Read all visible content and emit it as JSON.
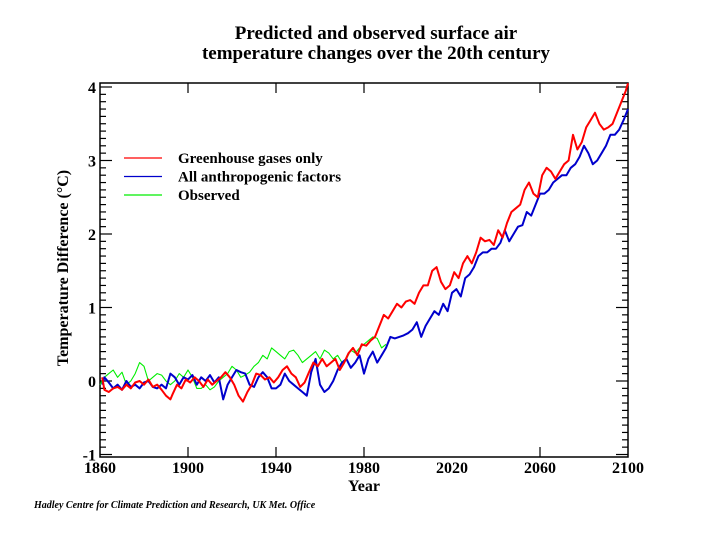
{
  "chart_data": {
    "type": "line",
    "title": "Predicted and observed surface air",
    "subtitle": "temperature changes over the 20th century",
    "xlabel": "Year",
    "ylabel": "Temperature Difference (°C)",
    "xlim": [
      1860,
      2100
    ],
    "ylim": [
      -1,
      4
    ],
    "x_ticks": [
      1860,
      1900,
      1940,
      1980,
      2020,
      2060,
      2100
    ],
    "x_tick_marks": [
      1900,
      1940,
      1980,
      2060
    ],
    "y_ticks": [
      -1,
      0,
      1,
      2,
      3,
      4
    ],
    "y_minor_step": 0.1,
    "grid": false,
    "legend_position": "top-left",
    "series": [
      {
        "name": "Greenhouse gases only",
        "color": "#ff0000",
        "x": [
          1861,
          1862,
          1864,
          1866,
          1868,
          1870,
          1872,
          1874,
          1876,
          1878,
          1880,
          1882,
          1884,
          1886,
          1888,
          1890,
          1892,
          1893,
          1895,
          1897,
          1899,
          1901,
          1903,
          1905,
          1907,
          1909,
          1911,
          1913,
          1915,
          1917,
          1919,
          1921,
          1923,
          1925,
          1927,
          1929,
          1931,
          1933,
          1935,
          1937,
          1939,
          1941,
          1943,
          1945,
          1947,
          1949,
          1951,
          1953,
          1955,
          1957,
          1959,
          1961,
          1963,
          1965,
          1967,
          1969,
          1971,
          1973,
          1975,
          1977,
          1979,
          1981,
          1983,
          1985,
          1987,
          1989,
          1991,
          1993,
          1995,
          1997,
          1999,
          2001,
          2003,
          2005,
          2007,
          2009,
          2011,
          2013,
          2015,
          2017,
          2019,
          2021,
          2023,
          2025,
          2027,
          2029,
          2031,
          2033,
          2035,
          2037,
          2039,
          2041,
          2043,
          2045,
          2047,
          2049,
          2051,
          2053,
          2055,
          2057,
          2059,
          2061,
          2063,
          2065,
          2067,
          2069,
          2071,
          2073,
          2075,
          2077,
          2079,
          2081,
          2083,
          2085,
          2087,
          2089,
          2091,
          2093,
          2095,
          2097,
          2099,
          2100
        ],
        "y": [
          0.05,
          -0.12,
          -0.15,
          -0.1,
          -0.08,
          -0.12,
          -0.05,
          -0.1,
          -0.02,
          0.0,
          -0.05,
          0.02,
          -0.08,
          -0.05,
          -0.12,
          -0.2,
          -0.25,
          -0.18,
          -0.05,
          -0.1,
          0.02,
          -0.02,
          0.05,
          0.0,
          -0.08,
          0.02,
          -0.05,
          0.0,
          0.05,
          0.12,
          0.05,
          -0.05,
          -0.2,
          -0.28,
          -0.15,
          -0.05,
          0.1,
          0.08,
          0.02,
          0.05,
          -0.02,
          0.05,
          0.15,
          0.2,
          0.1,
          0.05,
          -0.08,
          -0.02,
          0.12,
          0.25,
          0.2,
          0.3,
          0.2,
          0.25,
          0.3,
          0.15,
          0.25,
          0.38,
          0.45,
          0.35,
          0.5,
          0.48,
          0.55,
          0.6,
          0.75,
          0.9,
          0.85,
          0.95,
          1.05,
          1.0,
          1.08,
          1.1,
          1.05,
          1.2,
          1.3,
          1.3,
          1.5,
          1.55,
          1.35,
          1.25,
          1.3,
          1.48,
          1.4,
          1.6,
          1.7,
          1.6,
          1.75,
          1.95,
          1.9,
          1.92,
          1.85,
          2.05,
          1.95,
          2.15,
          2.3,
          2.35,
          2.4,
          2.6,
          2.7,
          2.55,
          2.5,
          2.8,
          2.9,
          2.85,
          2.75,
          2.85,
          2.95,
          3.0,
          3.35,
          3.15,
          3.25,
          3.45,
          3.55,
          3.65,
          3.5,
          3.42,
          3.45,
          3.5,
          3.65,
          3.8,
          3.95,
          4.05
        ]
      },
      {
        "name": "All anthropogenic factors",
        "color": "#0000cc",
        "x": [
          1861,
          1862,
          1864,
          1866,
          1868,
          1870,
          1872,
          1874,
          1876,
          1878,
          1880,
          1882,
          1884,
          1886,
          1888,
          1890,
          1892,
          1894,
          1896,
          1898,
          1900,
          1902,
          1904,
          1906,
          1908,
          1910,
          1912,
          1914,
          1916,
          1918,
          1920,
          1922,
          1924,
          1926,
          1928,
          1930,
          1932,
          1934,
          1936,
          1938,
          1940,
          1942,
          1944,
          1946,
          1948,
          1950,
          1952,
          1954,
          1956,
          1958,
          1960,
          1962,
          1964,
          1966,
          1968,
          1970,
          1972,
          1974,
          1976,
          1978,
          1980,
          1982,
          1984,
          1986,
          1988,
          1990,
          1992,
          1994,
          1996,
          1998,
          2000,
          2002,
          2004,
          2006,
          2008,
          2010,
          2012,
          2014,
          2016,
          2018,
          2020,
          2022,
          2024,
          2026,
          2028,
          2030,
          2032,
          2034,
          2036,
          2038,
          2040,
          2042,
          2044,
          2046,
          2048,
          2050,
          2052,
          2054,
          2056,
          2058,
          2060,
          2062,
          2064,
          2066,
          2068,
          2070,
          2072,
          2074,
          2076,
          2078,
          2080,
          2082,
          2084,
          2086,
          2088,
          2090,
          2092,
          2094,
          2096,
          2098,
          2100
        ],
        "y": [
          -0.05,
          0.05,
          -0.02,
          -0.1,
          -0.05,
          -0.12,
          0.0,
          -0.08,
          -0.05,
          -0.1,
          -0.02,
          0.0,
          -0.08,
          -0.1,
          -0.05,
          -0.1,
          0.1,
          0.05,
          -0.05,
          0.05,
          0.02,
          0.08,
          -0.05,
          0.05,
          0.0,
          0.08,
          -0.02,
          0.05,
          -0.25,
          -0.05,
          0.05,
          0.15,
          0.12,
          0.1,
          -0.05,
          -0.08,
          0.05,
          0.12,
          0.05,
          -0.1,
          -0.1,
          -0.05,
          0.1,
          0.0,
          -0.05,
          -0.1,
          -0.15,
          -0.2,
          0.12,
          0.3,
          -0.05,
          -0.15,
          -0.1,
          0.0,
          0.15,
          0.25,
          0.3,
          0.18,
          0.25,
          0.35,
          0.1,
          0.3,
          0.4,
          0.25,
          0.35,
          0.45,
          0.6,
          0.58,
          0.6,
          0.62,
          0.65,
          0.7,
          0.8,
          0.6,
          0.75,
          0.85,
          0.95,
          0.9,
          1.05,
          0.95,
          1.2,
          1.25,
          1.15,
          1.4,
          1.45,
          1.55,
          1.7,
          1.75,
          1.75,
          1.8,
          1.8,
          1.88,
          2.05,
          1.9,
          2.0,
          2.1,
          2.12,
          2.3,
          2.25,
          2.4,
          2.55,
          2.55,
          2.6,
          2.7,
          2.75,
          2.8,
          2.8,
          2.9,
          2.95,
          3.05,
          3.2,
          3.1,
          2.95,
          3.0,
          3.1,
          3.2,
          3.35,
          3.35,
          3.42,
          3.55,
          3.7
        ]
      },
      {
        "name": "Observed",
        "color": "#00ee00",
        "x": [
          1860,
          1862,
          1864,
          1866,
          1868,
          1870,
          1872,
          1874,
          1876,
          1878,
          1880,
          1882,
          1884,
          1886,
          1888,
          1890,
          1892,
          1894,
          1896,
          1898,
          1900,
          1902,
          1904,
          1906,
          1908,
          1910,
          1912,
          1914,
          1916,
          1918,
          1920,
          1922,
          1924,
          1926,
          1928,
          1930,
          1932,
          1934,
          1936,
          1938,
          1940,
          1942,
          1944,
          1946,
          1948,
          1950,
          1952,
          1954,
          1956,
          1958,
          1960,
          1962,
          1964,
          1966,
          1968,
          1970,
          1972,
          1974,
          1976,
          1978,
          1980,
          1982,
          1984,
          1986,
          1988,
          1990
        ],
        "y": [
          -0.05,
          0.05,
          0.1,
          0.15,
          0.05,
          0.12,
          -0.05,
          0.0,
          0.1,
          0.25,
          0.2,
          0.0,
          0.05,
          0.1,
          0.08,
          0.0,
          -0.05,
          0.0,
          0.1,
          0.05,
          0.15,
          0.05,
          -0.1,
          -0.1,
          -0.05,
          -0.12,
          -0.08,
          0.0,
          0.05,
          0.1,
          0.2,
          0.15,
          0.05,
          0.08,
          0.12,
          0.2,
          0.25,
          0.35,
          0.3,
          0.45,
          0.4,
          0.35,
          0.3,
          0.4,
          0.42,
          0.35,
          0.25,
          0.3,
          0.35,
          0.4,
          0.3,
          0.42,
          0.38,
          0.3,
          0.35,
          0.25,
          0.3,
          0.42,
          0.38,
          0.45,
          0.5,
          0.55,
          0.6,
          0.58,
          0.45,
          0.5
        ]
      }
    ]
  },
  "credit": "Hadley Centre for Climate Prediction and Research, UK Met. Office"
}
